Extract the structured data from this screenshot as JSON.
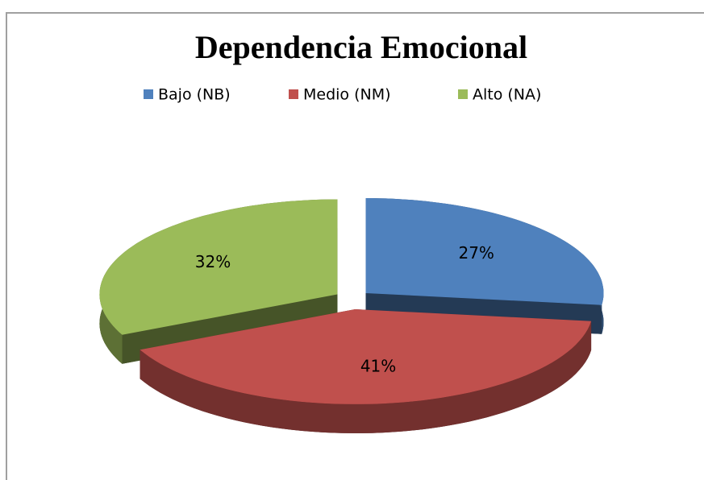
{
  "chart_data": {
    "type": "pie",
    "title": "Dependencia Emocional",
    "categories": [
      "Bajo (NB)",
      "Medio (NM)",
      "Alto (NA)"
    ],
    "values": [
      27,
      41,
      32
    ],
    "value_labels": [
      "27%",
      "41%",
      "32%"
    ],
    "colors": [
      "#4f81bd",
      "#c0504d",
      "#9bbb59"
    ],
    "legend": "top"
  }
}
